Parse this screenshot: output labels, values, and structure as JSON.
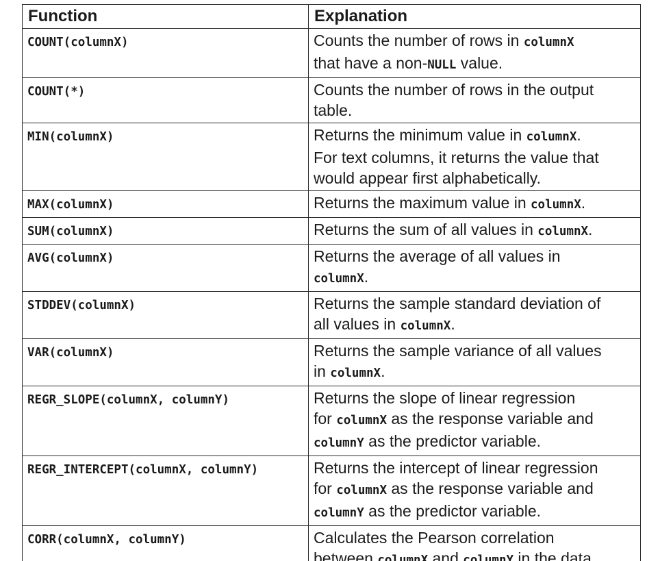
{
  "header": {
    "function": "Function",
    "explanation": "Explanation"
  },
  "rows": [
    {
      "function": "COUNT(columnX)",
      "explanation": [
        {
          "t": "Counts the number of rows in "
        },
        {
          "t": "columnX",
          "code": true
        },
        {
          "br": true
        },
        {
          "t": "that have a non-"
        },
        {
          "t": "NULL",
          "code": true
        },
        {
          "t": " value."
        }
      ]
    },
    {
      "function": "COUNT(*)",
      "explanation": [
        {
          "t": "Counts the number of rows in the output"
        },
        {
          "br": true
        },
        {
          "t": "table."
        }
      ]
    },
    {
      "function": "MIN(columnX)",
      "explanation": [
        {
          "t": "Returns the minimum value in "
        },
        {
          "t": "columnX",
          "code": true
        },
        {
          "t": "."
        },
        {
          "br": true
        },
        {
          "t": "For text columns, it returns the value that"
        },
        {
          "br": true
        },
        {
          "t": "would appear first alphabetically."
        }
      ]
    },
    {
      "function": "MAX(columnX)",
      "explanation": [
        {
          "t": "Returns the maximum value in "
        },
        {
          "t": "columnX",
          "code": true
        },
        {
          "t": "."
        }
      ]
    },
    {
      "function": "SUM(columnX)",
      "explanation": [
        {
          "t": "Returns the sum of all values in "
        },
        {
          "t": "columnX",
          "code": true
        },
        {
          "t": "."
        }
      ]
    },
    {
      "function": "AVG(columnX)",
      "explanation": [
        {
          "t": "Returns the average of all values in"
        },
        {
          "br": true
        },
        {
          "t": "columnX",
          "code": true
        },
        {
          "t": "."
        }
      ]
    },
    {
      "function": "STDDEV(columnX)",
      "explanation": [
        {
          "t": "Returns the sample standard deviation of"
        },
        {
          "br": true
        },
        {
          "t": "all values in "
        },
        {
          "t": "columnX",
          "code": true
        },
        {
          "t": "."
        }
      ]
    },
    {
      "function": "VAR(columnX)",
      "explanation": [
        {
          "t": "Returns the sample variance of all values"
        },
        {
          "br": true
        },
        {
          "t": "in "
        },
        {
          "t": "columnX",
          "code": true
        },
        {
          "t": "."
        }
      ]
    },
    {
      "function": "REGR_SLOPE(columnX, columnY)",
      "explanation": [
        {
          "t": "Returns the slope of linear regression"
        },
        {
          "br": true
        },
        {
          "t": "for "
        },
        {
          "t": "columnX",
          "code": true
        },
        {
          "t": " as the response variable and"
        },
        {
          "br": true
        },
        {
          "t": "columnY",
          "code": true
        },
        {
          "t": " as the predictor variable."
        }
      ]
    },
    {
      "function": "REGR_INTERCEPT(columnX, columnY)",
      "explanation": [
        {
          "t": "Returns the intercept of linear regression"
        },
        {
          "br": true
        },
        {
          "t": "for "
        },
        {
          "t": "columnX",
          "code": true
        },
        {
          "t": " as the response variable and"
        },
        {
          "br": true
        },
        {
          "t": "columnY",
          "code": true
        },
        {
          "t": " as the predictor variable."
        }
      ]
    },
    {
      "function": "CORR(columnX, columnY)",
      "explanation": [
        {
          "t": "Calculates the Pearson correlation"
        },
        {
          "br": true
        },
        {
          "t": "between "
        },
        {
          "t": "columnX",
          "code": true
        },
        {
          "t": " and "
        },
        {
          "t": "columnY",
          "code": true
        },
        {
          "t": " in the data."
        }
      ]
    }
  ]
}
